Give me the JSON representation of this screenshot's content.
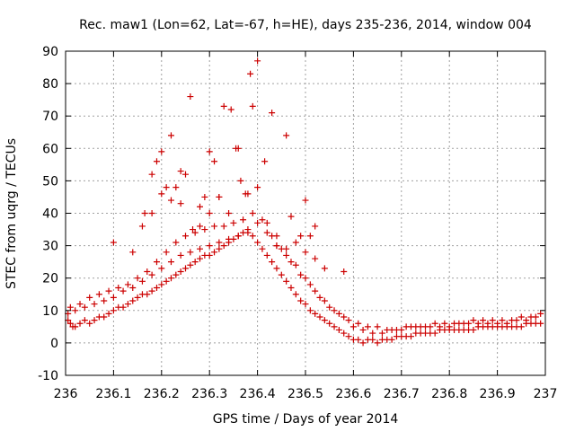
{
  "chart_data": {
    "type": "scatter",
    "title": "Rec. maw1 (Lon=62, Lat=-67, h=HE), days 235-236, 2014, window 004",
    "xlabel": "GPS time / Days of year 2014",
    "ylabel": "STEC from uqrg / TECUs",
    "xlim": [
      236,
      237
    ],
    "ylim": [
      -10,
      90
    ],
    "x_ticks": [
      236,
      236.1,
      236.2,
      236.3,
      236.4,
      236.5,
      236.6,
      236.7,
      236.8,
      236.9,
      237
    ],
    "x_tick_labels": [
      "236",
      "236.1",
      "236.2",
      "236.3",
      "236.4",
      "236.5",
      "236.6",
      "236.7",
      "236.8",
      "236.9",
      "237"
    ],
    "y_ticks": [
      -10,
      0,
      10,
      20,
      30,
      40,
      50,
      60,
      70,
      80,
      90
    ],
    "y_tick_labels": [
      "-10",
      "0",
      "10",
      "20",
      "30",
      "40",
      "50",
      "60",
      "70",
      "80",
      "90"
    ],
    "grid": true,
    "marker": "plus",
    "color": "#cc0000",
    "series": [
      {
        "x": [
          236.005,
          236.01,
          236.015,
          236.02,
          236.03,
          236.04,
          236.05,
          236.06,
          236.07,
          236.08,
          236.09,
          236.1,
          236.11,
          236.12,
          236.13,
          236.14,
          236.15,
          236.16,
          236.17,
          236.18,
          236.19,
          236.2,
          236.21,
          236.22,
          236.23,
          236.24,
          236.25,
          236.26,
          236.27,
          236.28,
          236.29,
          236.3,
          236.31,
          236.32,
          236.33,
          236.34,
          236.35,
          236.36,
          236.37,
          236.38,
          236.39,
          236.4,
          236.41,
          236.42,
          236.43,
          236.44,
          236.45,
          236.46,
          236.47,
          236.48,
          236.49,
          236.5,
          236.51,
          236.52,
          236.53,
          236.54,
          236.55,
          236.56,
          236.57,
          236.58,
          236.59,
          236.6,
          236.61,
          236.62,
          236.63,
          236.64,
          236.65,
          236.66,
          236.67,
          236.68,
          236.69,
          236.7,
          236.71,
          236.72,
          236.73,
          236.74,
          236.75,
          236.76,
          236.77,
          236.78,
          236.79,
          236.8,
          236.81,
          236.82,
          236.83,
          236.84,
          236.85,
          236.86,
          236.87,
          236.88,
          236.89,
          236.9,
          236.91,
          236.92,
          236.93,
          236.94,
          236.95,
          236.96,
          236.97,
          236.98,
          236.99
        ],
        "y": [
          7,
          6,
          5,
          5,
          6,
          7,
          6,
          7,
          8,
          8,
          9,
          10,
          11,
          11,
          12,
          13,
          14,
          15,
          15,
          16,
          17,
          18,
          19,
          20,
          21,
          22,
          23,
          24,
          25,
          26,
          27,
          27,
          28,
          29,
          30,
          31,
          32,
          33,
          34,
          34,
          33,
          31,
          29,
          27,
          25,
          23,
          21,
          19,
          17,
          15,
          13,
          12,
          10,
          9,
          8,
          7,
          6,
          5,
          4,
          3,
          2,
          1,
          1,
          0,
          1,
          1,
          0,
          1,
          1,
          1,
          2,
          2,
          2,
          2,
          3,
          3,
          3,
          3,
          3,
          4,
          4,
          4,
          4,
          4,
          4,
          4,
          4,
          5,
          5,
          5,
          5,
          5,
          5,
          5,
          5,
          5,
          5,
          6,
          6,
          6,
          6
        ]
      },
      {
        "x": [
          236.005,
          236.02,
          236.04,
          236.06,
          236.08,
          236.1,
          236.12,
          236.14,
          236.16,
          236.18,
          236.2,
          236.22,
          236.24,
          236.26,
          236.28,
          236.3,
          236.32,
          236.34,
          236.36,
          236.38,
          236.4,
          236.42,
          236.44,
          236.46,
          236.48,
          236.5,
          236.52,
          236.54,
          236.56,
          236.58,
          236.6,
          236.62,
          236.64,
          236.66,
          236.68,
          236.7,
          236.72,
          236.74,
          236.76,
          236.78,
          236.8,
          236.82,
          236.84,
          236.86,
          236.88,
          236.9,
          236.92,
          236.94,
          236.96,
          236.98
        ],
        "y": [
          9,
          10,
          11,
          12,
          13,
          14,
          16,
          17,
          19,
          21,
          23,
          25,
          27,
          28,
          29,
          30,
          31,
          32,
          33,
          35,
          37,
          34,
          30,
          27,
          24,
          20,
          16,
          13,
          10,
          8,
          5,
          4,
          3,
          3,
          4,
          4,
          5,
          5,
          5,
          5,
          5,
          6,
          6,
          6,
          6,
          6,
          6,
          7,
          7,
          8
        ]
      },
      {
        "x": [
          236.01,
          236.03,
          236.05,
          236.07,
          236.09,
          236.11,
          236.13,
          236.15,
          236.17,
          236.19,
          236.21,
          236.23,
          236.25,
          236.27,
          236.29,
          236.31,
          236.33,
          236.35,
          236.37,
          236.39,
          236.41,
          236.43,
          236.45,
          236.47,
          236.49,
          236.51,
          236.53,
          236.55,
          236.57,
          236.59,
          236.61,
          236.63,
          236.65,
          236.67,
          236.69,
          236.71,
          236.73,
          236.75,
          236.77,
          236.79,
          236.81,
          236.83,
          236.85,
          236.87,
          236.89,
          236.91,
          236.93,
          236.95,
          236.97,
          236.99
        ],
        "y": [
          11,
          12,
          14,
          15,
          16,
          17,
          18,
          20,
          22,
          25,
          28,
          31,
          33,
          34,
          35,
          36,
          36,
          37,
          38,
          40,
          38,
          33,
          29,
          25,
          21,
          18,
          14,
          11,
          9,
          7,
          6,
          5,
          5,
          4,
          4,
          5,
          5,
          5,
          6,
          6,
          6,
          6,
          7,
          7,
          7,
          7,
          7,
          8,
          8,
          9
        ]
      },
      {
        "x": [
          236.1,
          236.14,
          236.165,
          236.18,
          236.19,
          236.2,
          236.21,
          236.22,
          236.23,
          236.24,
          236.25,
          236.265,
          236.28,
          236.29,
          236.3,
          236.31,
          236.32,
          236.33,
          236.345,
          236.355,
          236.365,
          236.375,
          236.385,
          236.39,
          236.4,
          236.415,
          236.43,
          236.44,
          236.46,
          236.47,
          236.49,
          236.5,
          236.51,
          236.52,
          236.58
        ],
        "y": [
          31,
          28,
          40,
          52,
          56,
          59,
          48,
          64,
          48,
          53,
          52,
          35,
          42,
          45,
          59,
          56,
          45,
          73,
          72,
          60,
          50,
          46,
          83,
          73,
          87,
          56,
          71,
          30,
          64,
          39,
          33,
          44,
          33,
          36,
          22
        ]
      },
      {
        "x": [
          236.16,
          236.18,
          236.2,
          236.22,
          236.24,
          236.26,
          236.28,
          236.3,
          236.32,
          236.34,
          236.36,
          236.38,
          236.4,
          236.42,
          236.44,
          236.46,
          236.48,
          236.5,
          236.52,
          236.54
        ],
        "y": [
          36,
          40,
          46,
          44,
          43,
          76,
          36,
          40,
          45,
          40,
          60,
          46,
          48,
          37,
          33,
          29,
          31,
          28,
          26,
          23
        ]
      }
    ]
  }
}
